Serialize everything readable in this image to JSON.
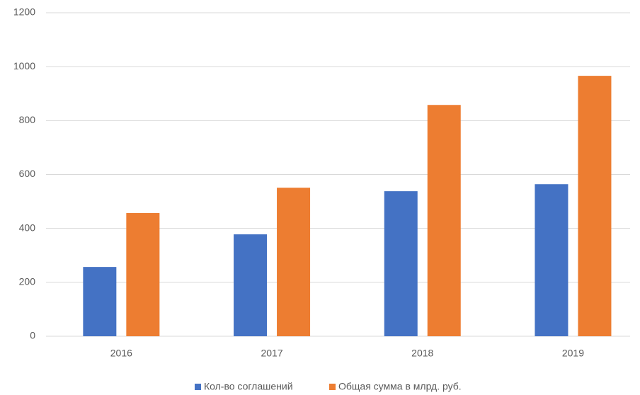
{
  "chart_data": {
    "type": "bar",
    "categories": [
      "2016",
      "2017",
      "2018",
      "2019"
    ],
    "series": [
      {
        "name": "Кол-во соглашений",
        "color": "#4472c4",
        "values": [
          257,
          378,
          538,
          564
        ]
      },
      {
        "name": "Общая сумма в млрд. руб.",
        "color": "#ed7d31",
        "values": [
          457,
          551,
          858,
          966
        ]
      }
    ],
    "ylim": [
      0,
      1200
    ],
    "yticks": [
      0,
      200,
      400,
      600,
      800,
      1000,
      1200
    ],
    "grid": true,
    "legend": "bottom"
  }
}
